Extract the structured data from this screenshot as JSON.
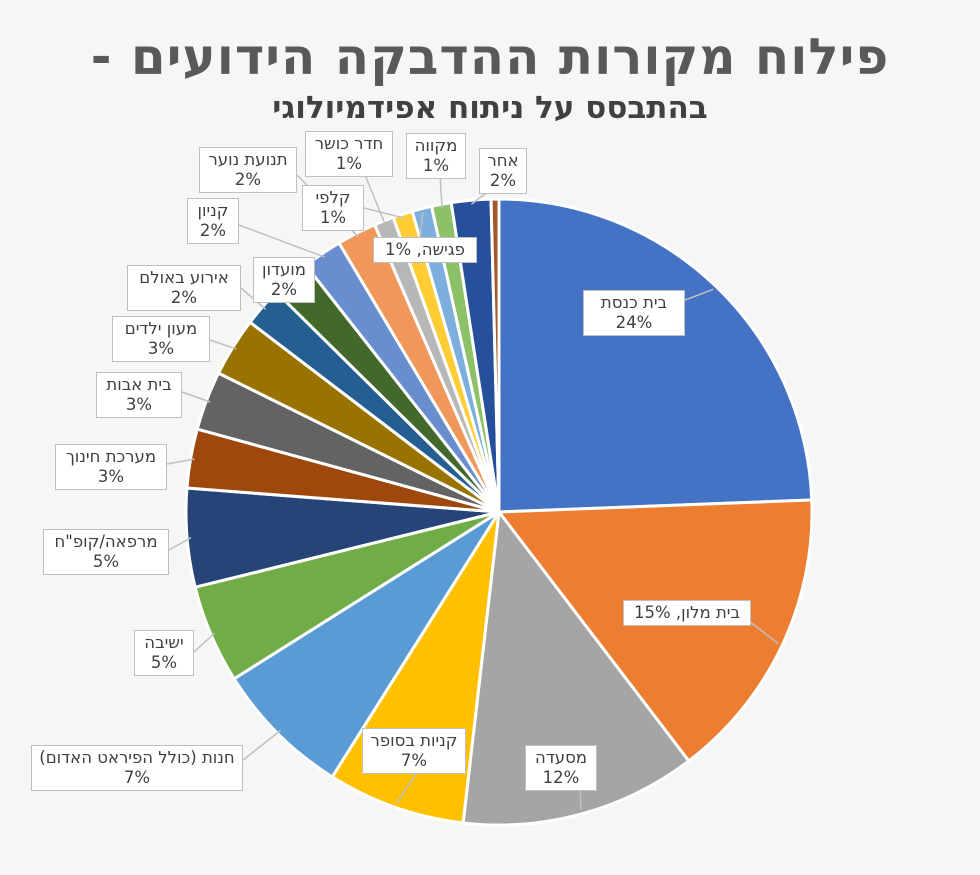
{
  "chart_data": {
    "type": "pie",
    "title": "פילוח מקורות ההדבקה הידועים -",
    "subtitle": "בהתבסס על ניתוח אפידמיולוגי",
    "start": "12 o'clock, clockwise",
    "slices": [
      {
        "name": "בית כנסת",
        "value": 24,
        "label": "24%",
        "color": "#4472c4"
      },
      {
        "name": "בית מלון",
        "value": 15,
        "label": "15%",
        "color": "#ed7d31"
      },
      {
        "name": "מסעדה",
        "value": 12,
        "label": "12%",
        "color": "#a5a5a5"
      },
      {
        "name": "קניות בסופר",
        "value": 7,
        "label": "7%",
        "color": "#ffc000"
      },
      {
        "name": "חנות (כולל הפיראט האדום)",
        "value": 7,
        "label": "7%",
        "color": "#5b9bd5"
      },
      {
        "name": "ישיבה",
        "value": 5,
        "label": "5%",
        "color": "#70ad47"
      },
      {
        "name": "מרפאה/קופ\"ח",
        "value": 5,
        "label": "5%",
        "color": "#264478"
      },
      {
        "name": "מערכת חינוך",
        "value": 3,
        "label": "3%",
        "color": "#9e480e"
      },
      {
        "name": "בית אבות",
        "value": 3,
        "label": "3%",
        "color": "#636363"
      },
      {
        "name": "מעון ילדים",
        "value": 3,
        "label": "3%",
        "color": "#997300"
      },
      {
        "name": "אירוע באולם",
        "value": 2,
        "label": "2%",
        "color": "#255e91"
      },
      {
        "name": "מועדון",
        "value": 2,
        "label": "2%",
        "color": "#43682b"
      },
      {
        "name": "קניון",
        "value": 2,
        "label": "2%",
        "color": "#698ed0"
      },
      {
        "name": "תנועת נוער",
        "value": 2,
        "label": "2%",
        "color": "#f1975a"
      },
      {
        "name": "חדר כושר",
        "value": 1,
        "label": "1%",
        "color": "#b7b7b7"
      },
      {
        "name": "קלפי",
        "value": 1,
        "label": "1%",
        "color": "#ffcd33"
      },
      {
        "name": "פגישה",
        "value": 1,
        "label": "1%",
        "color": "#7cafdd"
      },
      {
        "name": "מקווה",
        "value": 1,
        "label": "1%",
        "color": "#8cc168"
      },
      {
        "name": "אחר",
        "value": 2,
        "label": "2%",
        "color": "#264f9c"
      },
      {
        "name": "",
        "value": 0.4,
        "label": "",
        "color": "#a5552a"
      }
    ]
  }
}
